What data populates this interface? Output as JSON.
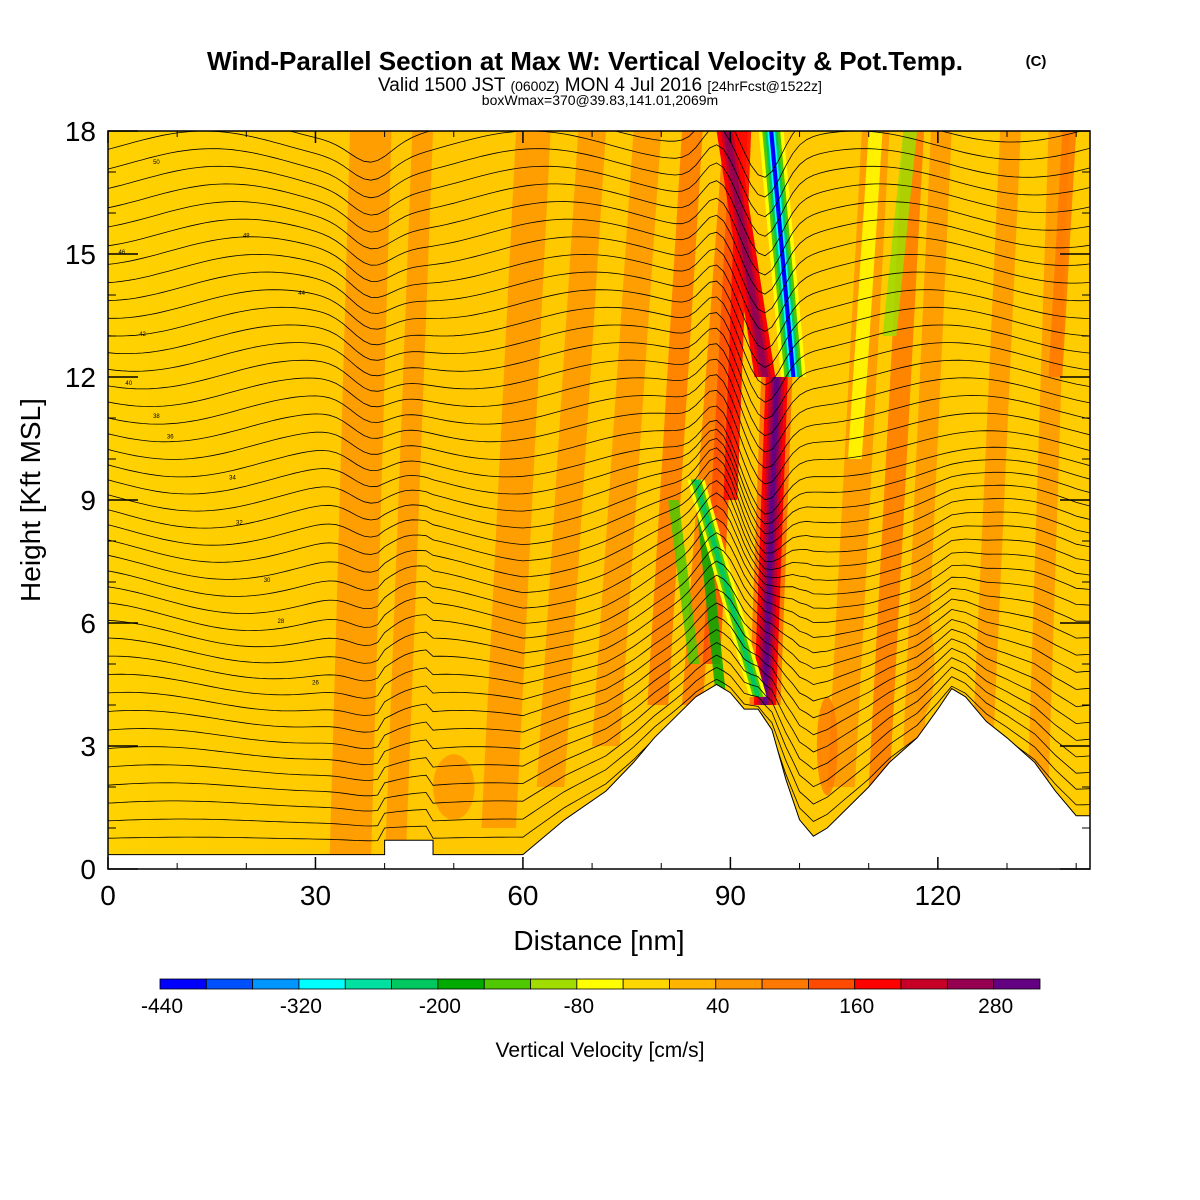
{
  "titles": {
    "main": "Wind-Parallel Section at Max W: Vertical Velocity & Pot.Temp.",
    "copyright": "(C)",
    "valid_prefix": "Valid 1500 JST",
    "utc": "(0600Z)",
    "valid_date": "MON 4 Jul 2016",
    "forecast": "[24hrFcst@1522z]",
    "boxmax": "boxWmax=370@39.83,141.01,2069m"
  },
  "chart_data": {
    "type": "heatmap",
    "title": "Wind-Parallel Section at Max W: Vertical Velocity & Pot.Temp.",
    "xlabel": "Distance [nm]",
    "ylabel": "Height [Kft MSL]",
    "xlim": [
      0,
      142
    ],
    "ylim": [
      0,
      18
    ],
    "xticks": [
      0,
      30,
      60,
      90,
      120
    ],
    "yticks": [
      0,
      3,
      6,
      9,
      12,
      15,
      18
    ],
    "colorbar": {
      "label": "Vertical Velocity [cm/s]",
      "tick_labels": [
        "-440",
        "-320",
        "-200",
        "-80",
        "40",
        "160",
        "280"
      ],
      "tick_values": [
        -440,
        -320,
        -200,
        -80,
        40,
        160,
        280
      ],
      "min": -440,
      "max": 320,
      "step": 40,
      "colors": [
        "#0000ff",
        "#0050ff",
        "#0096ff",
        "#00ffff",
        "#00e0a0",
        "#00c860",
        "#00aa00",
        "#50c800",
        "#a0dc00",
        "#ffff00",
        "#ffd700",
        "#ffb400",
        "#ff9600",
        "#ff7800",
        "#ff4b00",
        "#ff0000",
        "#c80028",
        "#960050",
        "#640082"
      ]
    },
    "terrain": [
      [
        0,
        0.35
      ],
      [
        40,
        0.35
      ],
      [
        40,
        0.7
      ],
      [
        47,
        0.7
      ],
      [
        47,
        0.35
      ],
      [
        60,
        0.35
      ],
      [
        66,
        1.2
      ],
      [
        72,
        1.9
      ],
      [
        76,
        2.6
      ],
      [
        79,
        3.2
      ],
      [
        82,
        3.7
      ],
      [
        85,
        4.2
      ],
      [
        88,
        4.5
      ],
      [
        90,
        4.3
      ],
      [
        92,
        3.9
      ],
      [
        94,
        3.9
      ],
      [
        96,
        3.4
      ],
      [
        98,
        2.2
      ],
      [
        100,
        1.2
      ],
      [
        102,
        0.8
      ],
      [
        104,
        1.0
      ],
      [
        107,
        1.5
      ],
      [
        110,
        2.0
      ],
      [
        113,
        2.6
      ],
      [
        117,
        3.2
      ],
      [
        120,
        3.9
      ],
      [
        122,
        4.4
      ],
      [
        124,
        4.2
      ],
      [
        127,
        3.6
      ],
      [
        130,
        3.2
      ],
      [
        134,
        2.6
      ],
      [
        137,
        1.9
      ],
      [
        140,
        1.3
      ],
      [
        142,
        1.3
      ]
    ],
    "updraft_core": {
      "x_center": 95.5,
      "z_range": [
        4,
        12
      ],
      "peak": 370
    },
    "downdraft_core": {
      "x_center": 97.5,
      "z_range": [
        12,
        18
      ],
      "peak": -440
    },
    "contour_labels": [
      "50",
      "48",
      "46",
      "44",
      "42",
      "40",
      "38",
      "36",
      "34",
      "32",
      "30",
      "28",
      "26"
    ]
  }
}
